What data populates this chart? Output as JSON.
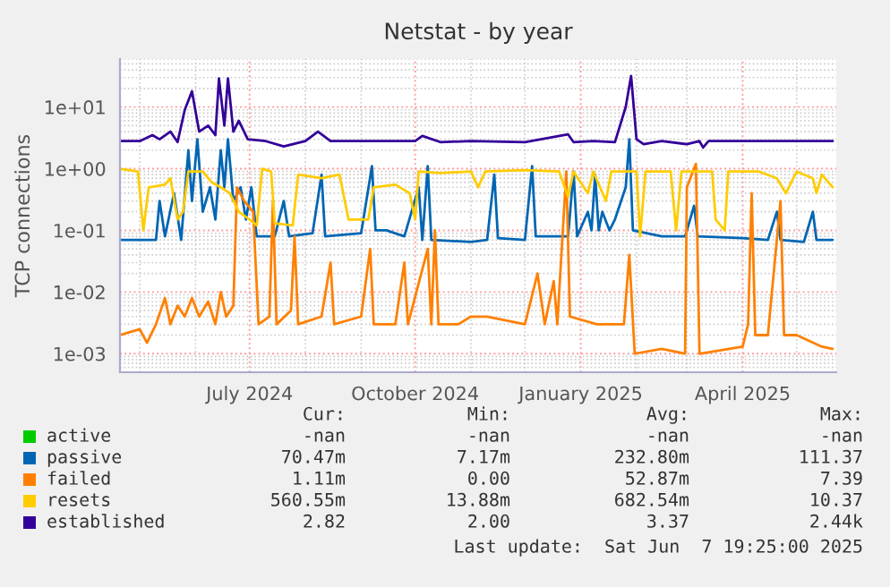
{
  "chart_data": {
    "type": "line",
    "title": "Netstat - by year",
    "ylabel": "TCP connections",
    "log": true,
    "xlim": [
      "2024-04-20",
      "2025-05-23"
    ],
    "xticks": [
      {
        "value": "2024-07-01",
        "label": "July 2024"
      },
      {
        "value": "2024-10-01",
        "label": "October 2024"
      },
      {
        "value": "2025-01-01",
        "label": "January 2025"
      },
      {
        "value": "2025-04-01",
        "label": "April 2025"
      }
    ],
    "ylim": [
      0.0005,
      60
    ],
    "yticks": [
      {
        "value": 0.001,
        "label": "1e-03"
      },
      {
        "value": 0.01,
        "label": "1e-02"
      },
      {
        "value": 0.1,
        "label": "1e-01"
      },
      {
        "value": 1,
        "label": "1e+00"
      },
      {
        "value": 10,
        "label": "1e+01"
      }
    ],
    "grid": true,
    "legend": "bottom",
    "line_style": "solid",
    "marker": "none",
    "series": [
      {
        "name": "active",
        "color": "#00cc00"
      },
      {
        "name": "passive",
        "color": "#0066b3",
        "x": [
          "2024-04-20",
          "2024-05-10",
          "2024-05-12",
          "2024-05-15",
          "2024-05-20",
          "2024-05-24",
          "2024-05-28",
          "2024-05-30",
          "2024-06-02",
          "2024-06-05",
          "2024-06-09",
          "2024-06-12",
          "2024-06-15",
          "2024-06-17",
          "2024-06-19",
          "2024-06-22",
          "2024-06-26",
          "2024-06-29",
          "2024-07-02",
          "2024-07-05",
          "2024-07-15",
          "2024-07-20",
          "2024-07-23",
          "2024-08-05",
          "2024-08-10",
          "2024-08-12",
          "2024-09-01",
          "2024-09-07",
          "2024-09-09",
          "2024-09-15",
          "2024-09-25",
          "2024-10-03",
          "2024-10-05",
          "2024-10-08",
          "2024-10-10",
          "2024-11-01",
          "2024-11-10",
          "2024-11-14",
          "2024-11-16",
          "2024-12-01",
          "2024-12-05",
          "2024-12-07",
          "2024-12-25",
          "2024-12-28",
          "2024-12-30",
          "2025-01-05",
          "2025-01-07",
          "2025-01-09",
          "2025-01-11",
          "2025-01-13",
          "2025-01-17",
          "2025-01-20",
          "2025-01-26",
          "2025-01-28",
          "2025-01-30",
          "2025-02-15",
          "2025-02-28",
          "2025-03-05",
          "2025-03-07",
          "2025-04-01",
          "2025-04-15",
          "2025-04-20",
          "2025-04-22",
          "2025-05-05",
          "2025-05-10",
          "2025-05-12",
          "2025-05-21"
        ],
        "values": [
          0.07,
          0.07,
          0.3,
          0.08,
          0.4,
          0.07,
          2,
          0.3,
          3,
          0.2,
          0.5,
          0.15,
          2,
          0.5,
          3,
          0.3,
          0.5,
          0.15,
          0.5,
          0.08,
          0.08,
          0.3,
          0.08,
          0.09,
          0.8,
          0.08,
          0.09,
          1.1,
          0.1,
          0.1,
          0.08,
          0.5,
          0.07,
          1.1,
          0.07,
          0.065,
          0.07,
          0.8,
          0.075,
          0.07,
          1.1,
          0.08,
          0.08,
          0.9,
          0.08,
          0.2,
          0.1,
          0.8,
          0.1,
          0.2,
          0.1,
          0.15,
          0.5,
          3,
          0.1,
          0.08,
          0.08,
          0.25,
          0.08,
          0.075,
          0.07,
          0.2,
          0.07,
          0.065,
          0.2,
          0.07,
          0.07
        ]
      },
      {
        "name": "failed",
        "color": "#ff8000",
        "x": [
          "2024-04-20",
          "2024-05-01",
          "2024-05-05",
          "2024-05-10",
          "2024-05-15",
          "2024-05-18",
          "2024-05-22",
          "2024-05-26",
          "2024-05-30",
          "2024-06-03",
          "2024-06-08",
          "2024-06-12",
          "2024-06-15",
          "2024-06-18",
          "2024-06-22",
          "2024-06-24",
          "2024-06-28",
          "2024-07-03",
          "2024-07-06",
          "2024-07-12",
          "2024-07-14",
          "2024-07-16",
          "2024-07-24",
          "2024-07-26",
          "2024-07-28",
          "2024-08-10",
          "2024-08-15",
          "2024-08-17",
          "2024-09-01",
          "2024-09-06",
          "2024-09-08",
          "2024-09-20",
          "2024-09-25",
          "2024-09-27",
          "2024-10-08",
          "2024-10-10",
          "2024-10-12",
          "2024-10-14",
          "2024-10-25",
          "2024-11-01",
          "2024-11-10",
          "2024-12-01",
          "2024-12-08",
          "2024-12-12",
          "2024-12-17",
          "2024-12-19",
          "2024-12-24",
          "2024-12-26",
          "2025-01-10",
          "2025-01-25",
          "2025-01-28",
          "2025-01-31",
          "2025-02-15",
          "2025-02-28",
          "2025-03-01",
          "2025-03-06",
          "2025-03-08",
          "2025-04-01",
          "2025-04-04",
          "2025-04-06",
          "2025-04-08",
          "2025-04-15",
          "2025-04-22",
          "2025-04-24",
          "2025-05-01",
          "2025-05-15",
          "2025-05-21"
        ],
        "values": [
          0.002,
          0.0025,
          0.0015,
          0.003,
          0.008,
          0.003,
          0.006,
          0.004,
          0.008,
          0.004,
          0.007,
          0.003,
          0.01,
          0.004,
          0.006,
          0.5,
          0.3,
          0.2,
          0.003,
          0.004,
          0.3,
          0.003,
          0.005,
          0.08,
          0.003,
          0.004,
          0.03,
          0.003,
          0.004,
          0.05,
          0.003,
          0.003,
          0.03,
          0.003,
          0.05,
          0.003,
          0.1,
          0.003,
          0.003,
          0.004,
          0.004,
          0.003,
          0.02,
          0.003,
          0.015,
          0.003,
          0.9,
          0.004,
          0.003,
          0.003,
          0.04,
          0.001,
          0.0012,
          0.001,
          0.5,
          1.2,
          0.001,
          0.0013,
          0.003,
          0.4,
          0.002,
          0.002,
          0.3,
          0.002,
          0.002,
          0.0013,
          0.0012
        ]
      },
      {
        "name": "resets",
        "color": "#ffcc00",
        "x": [
          "2024-04-20",
          "2024-04-30",
          "2024-05-03",
          "2024-05-06",
          "2024-05-15",
          "2024-05-18",
          "2024-05-22",
          "2024-05-25",
          "2024-05-28",
          "2024-06-05",
          "2024-06-10",
          "2024-06-15",
          "2024-06-20",
          "2024-06-25",
          "2024-07-01",
          "2024-07-05",
          "2024-07-08",
          "2024-07-13",
          "2024-07-15",
          "2024-07-25",
          "2024-07-28",
          "2024-08-10",
          "2024-08-20",
          "2024-08-25",
          "2024-09-05",
          "2024-09-08",
          "2024-09-20",
          "2024-09-28",
          "2024-10-01",
          "2024-10-03",
          "2024-10-15",
          "2024-11-01",
          "2024-11-05",
          "2024-11-09",
          "2024-12-01",
          "2024-12-20",
          "2024-12-25",
          "2024-12-28",
          "2025-01-05",
          "2025-01-08",
          "2025-01-15",
          "2025-01-18",
          "2025-02-01",
          "2025-02-03",
          "2025-02-06",
          "2025-02-20",
          "2025-02-23",
          "2025-02-26",
          "2025-03-15",
          "2025-03-17",
          "2025-03-22",
          "2025-03-24",
          "2025-04-10",
          "2025-04-20",
          "2025-04-25",
          "2025-05-01",
          "2025-05-10",
          "2025-05-12",
          "2025-05-15",
          "2025-05-21"
        ],
        "values": [
          1.0,
          0.9,
          0.1,
          0.5,
          0.55,
          0.7,
          0.15,
          0.2,
          0.9,
          0.9,
          0.6,
          0.5,
          0.4,
          0.2,
          0.15,
          0.12,
          1.0,
          0.9,
          0.13,
          0.12,
          0.8,
          0.7,
          0.8,
          0.15,
          0.15,
          0.5,
          0.55,
          0.4,
          0.15,
          0.9,
          0.85,
          0.9,
          0.5,
          0.9,
          0.95,
          0.9,
          0.35,
          0.9,
          0.4,
          0.9,
          0.3,
          0.9,
          0.9,
          0.08,
          0.9,
          0.9,
          0.1,
          0.9,
          0.9,
          0.15,
          0.1,
          0.9,
          0.9,
          0.7,
          0.4,
          0.9,
          0.7,
          0.4,
          0.8,
          0.5
        ]
      },
      {
        "name": "established",
        "color": "#330099",
        "x": [
          "2024-04-20",
          "2024-05-01",
          "2024-05-08",
          "2024-05-12",
          "2024-05-18",
          "2024-05-22",
          "2024-05-26",
          "2024-05-30",
          "2024-06-03",
          "2024-06-08",
          "2024-06-12",
          "2024-06-14",
          "2024-06-17",
          "2024-06-19",
          "2024-06-22",
          "2024-06-25",
          "2024-06-30",
          "2024-07-10",
          "2024-07-20",
          "2024-08-01",
          "2024-08-08",
          "2024-08-15",
          "2024-09-15",
          "2024-10-01",
          "2024-10-05",
          "2024-10-15",
          "2024-11-01",
          "2024-12-01",
          "2024-12-25",
          "2024-12-28",
          "2025-01-08",
          "2025-01-20",
          "2025-01-26",
          "2025-01-29",
          "2025-02-01",
          "2025-02-05",
          "2025-02-15",
          "2025-03-01",
          "2025-03-08",
          "2025-03-10",
          "2025-03-13",
          "2025-04-01",
          "2025-05-01",
          "2025-05-21"
        ],
        "values": [
          2.8,
          2.8,
          3.5,
          3.0,
          4,
          2.7,
          9,
          18,
          4,
          5,
          3.5,
          29,
          5,
          29,
          4,
          6,
          3,
          2.8,
          2.3,
          2.8,
          4,
          2.8,
          2.8,
          2.8,
          3.4,
          2.7,
          2.8,
          2.7,
          3.6,
          2.7,
          2.8,
          2.7,
          10,
          32,
          3,
          2.5,
          2.8,
          2.5,
          2.8,
          2.2,
          2.8,
          2.8,
          2.8,
          2.8
        ]
      }
    ],
    "annotations": [
      "Cur:",
      "Min:",
      "Avg:",
      "Max:",
      "-nan",
      "-nan",
      "-nan",
      "-nan",
      "70.47m",
      "7.17m",
      "232.80m",
      "111.37",
      "1.11m",
      "0.00",
      "52.87m",
      "7.39",
      "560.55m",
      "13.88m",
      "682.54m",
      "10.37",
      "2.82",
      "2.00",
      "3.37",
      "2.44k",
      "Last update:  Sat Jun  7 19:25:00 2025"
    ]
  }
}
